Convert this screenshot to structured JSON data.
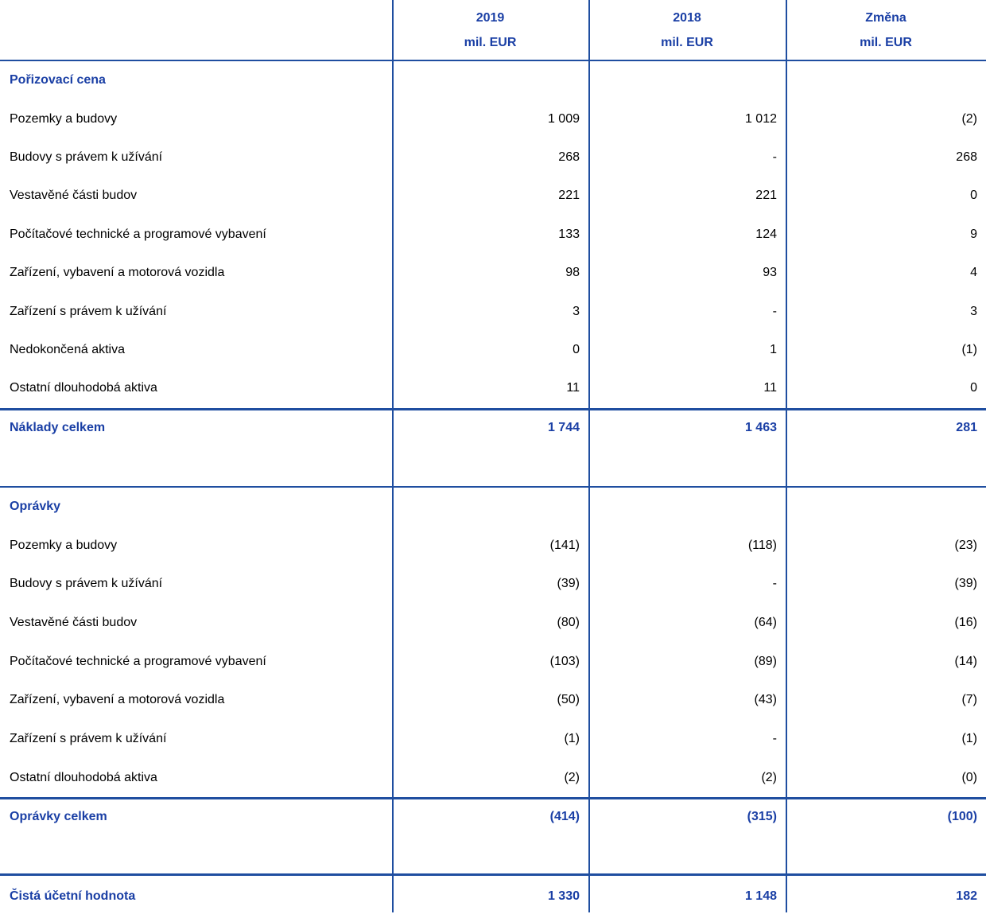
{
  "colors": {
    "accent_blue_text": "#1a3fa5",
    "accent_blue_line": "#1f4ea0",
    "body_text": "#000000",
    "background": "#ffffff"
  },
  "header": {
    "col_2019": {
      "year": "2019",
      "unit": "mil. EUR"
    },
    "col_2018": {
      "year": "2018",
      "unit": "mil. EUR"
    },
    "col_change": {
      "year": "Změna",
      "unit": "mil. EUR"
    }
  },
  "section1": {
    "title": "Pořizovací cena",
    "rows": [
      {
        "label": "Pozemky a budovy",
        "y2019": "1 009",
        "y2018": "1 012",
        "change": "(2)"
      },
      {
        "label": "Budovy s právem k užívání",
        "y2019": "268",
        "y2018": "-",
        "change": "268"
      },
      {
        "label": "Vestavěné části budov",
        "y2019": "221",
        "y2018": "221",
        "change": "0"
      },
      {
        "label": "Počítačové technické a programové vybavení",
        "y2019": "133",
        "y2018": "124",
        "change": "9"
      },
      {
        "label": "Zařízení, vybavení a motorová vozidla",
        "y2019": "98",
        "y2018": "93",
        "change": "4"
      },
      {
        "label": "Zařízení s právem k užívání",
        "y2019": "3",
        "y2018": "-",
        "change": "3"
      },
      {
        "label": "Nedokončená aktiva",
        "y2019": "0",
        "y2018": "1",
        "change": "(1)"
      },
      {
        "label": "Ostatní dlouhodobá aktiva",
        "y2019": "11",
        "y2018": "11",
        "change": "0"
      }
    ],
    "total": {
      "label": "Náklady celkem",
      "y2019": "1 744",
      "y2018": "1 463",
      "change": "281"
    }
  },
  "section2": {
    "title": "Oprávky",
    "rows": [
      {
        "label": "Pozemky a budovy",
        "y2019": "(141)",
        "y2018": "(118)",
        "change": "(23)"
      },
      {
        "label": "Budovy s právem k užívání",
        "y2019": "(39)",
        "y2018": "-",
        "change": "(39)"
      },
      {
        "label": "Vestavěné části budov",
        "y2019": "(80)",
        "y2018": "(64)",
        "change": "(16)"
      },
      {
        "label": "Počítačové technické a programové vybavení",
        "y2019": "(103)",
        "y2018": "(89)",
        "change": "(14)"
      },
      {
        "label": "Zařízení, vybavení a motorová vozidla",
        "y2019": "(50)",
        "y2018": "(43)",
        "change": "(7)"
      },
      {
        "label": "Zařízení s právem k užívání",
        "y2019": "(1)",
        "y2018": "-",
        "change": "(1)"
      },
      {
        "label": "Ostatní dlouhodobá aktiva",
        "y2019": "(2)",
        "y2018": "(2)",
        "change": "(0)"
      }
    ],
    "total": {
      "label": "Oprávky celkem",
      "y2019": "(414)",
      "y2018": "(315)",
      "change": "(100)"
    }
  },
  "net": {
    "label": "Čistá účetní hodnota",
    "y2019": "1 330",
    "y2018": "1 148",
    "change": "182"
  }
}
